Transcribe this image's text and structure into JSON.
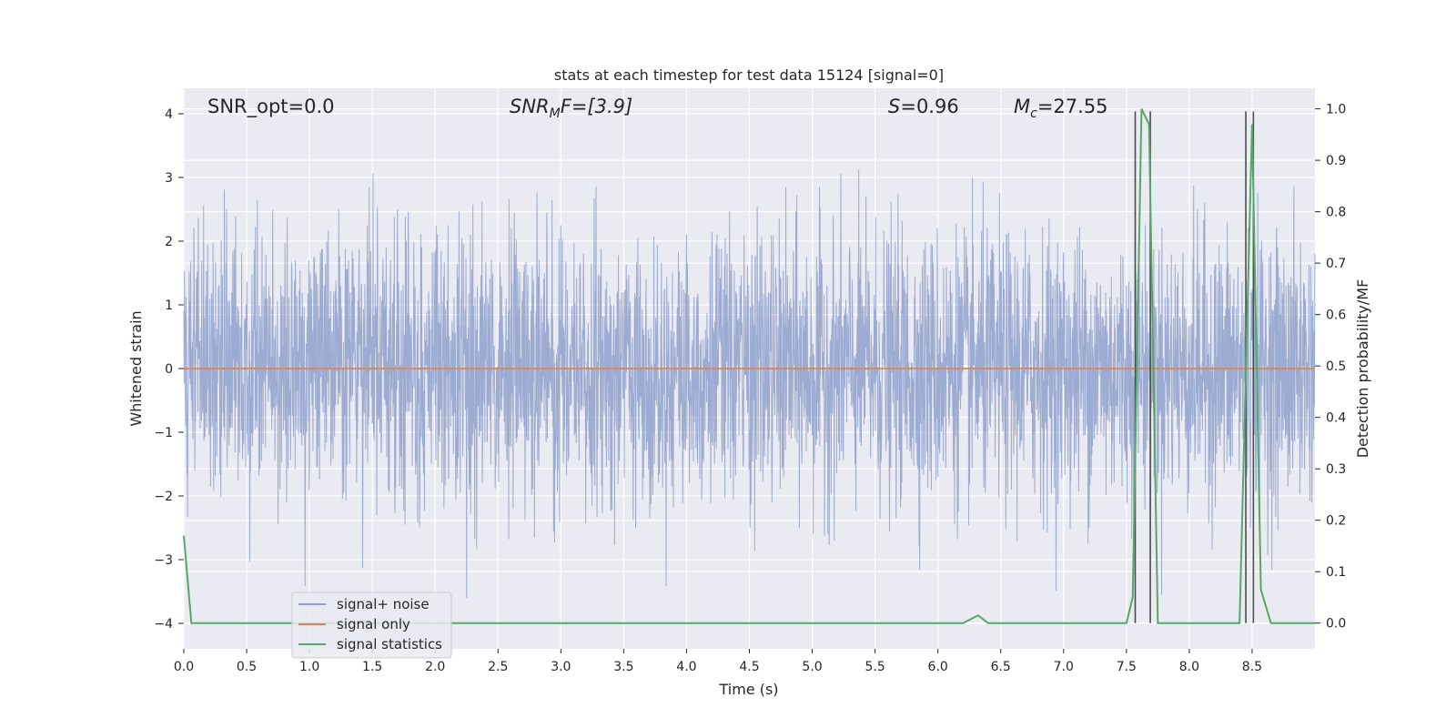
{
  "chart_data": {
    "type": "line",
    "title": "stats at each timestep for test data 15124 [signal=0]",
    "xlabel": "Time (s)",
    "ylabel_left": "Whitened strain",
    "ylabel_right": "Detection probability/MF",
    "xlim": [
      0.0,
      9.0
    ],
    "ylim_left": [
      -4.4,
      4.4
    ],
    "ylim_right": [
      -0.05,
      1.04
    ],
    "grid": true,
    "x_ticks": [
      "0.0",
      "0.5",
      "1.0",
      "1.5",
      "2.0",
      "2.5",
      "3.0",
      "3.5",
      "4.0",
      "4.5",
      "5.0",
      "5.5",
      "6.0",
      "6.5",
      "7.0",
      "7.5",
      "8.0",
      "8.5"
    ],
    "x_tick_values": [
      0.0,
      0.5,
      1.0,
      1.5,
      2.0,
      2.5,
      3.0,
      3.5,
      4.0,
      4.5,
      5.0,
      5.5,
      6.0,
      6.5,
      7.0,
      7.5,
      8.0,
      8.5
    ],
    "y_left_ticks": [
      "−4",
      "−3",
      "−2",
      "−1",
      "0",
      "1",
      "2",
      "3",
      "4"
    ],
    "y_left_tick_values": [
      -4,
      -3,
      -2,
      -1,
      0,
      1,
      2,
      3,
      4
    ],
    "y_right_ticks": [
      "0.0",
      "0.1",
      "0.2",
      "0.3",
      "0.4",
      "0.5",
      "0.6",
      "0.7",
      "0.8",
      "0.9",
      "1.0"
    ],
    "y_right_tick_values": [
      0.0,
      0.1,
      0.2,
      0.3,
      0.4,
      0.5,
      0.6,
      0.7,
      0.8,
      0.9,
      1.0
    ],
    "annotations": {
      "snr_opt": "SNR_opt=0.0",
      "snr_mf_main": "SNR",
      "snr_mf_sub": "M",
      "snr_mf_rest": "F=[3.9]",
      "s_main": "S",
      "s_rest": "=0.96",
      "mc_main": "M",
      "mc_sub": "c",
      "mc_rest": "=27.55"
    },
    "series": [
      {
        "name": "signal+ noise",
        "color": "#8da0cb",
        "axis": "left",
        "description_range": [
          -3.6,
          3.7
        ]
      },
      {
        "name": "signal only",
        "color": "#dd8452",
        "axis": "left",
        "x": [
          0.0,
          9.0
        ],
        "y": [
          0.0,
          0.0
        ]
      },
      {
        "name": "signal statistics",
        "color": "#55a868",
        "axis": "right",
        "x": [
          0.0,
          0.06,
          0.12,
          0.5,
          1.0,
          2.0,
          3.0,
          4.0,
          5.0,
          6.0,
          6.2,
          6.32,
          6.4,
          7.0,
          7.5,
          7.55,
          7.62,
          7.68,
          7.75,
          8.0,
          8.4,
          8.5,
          8.57,
          8.65,
          9.0
        ],
        "y": [
          0.17,
          0.0,
          0.0,
          0.0,
          0.0,
          0.0,
          0.0,
          0.0,
          0.0,
          0.0,
          0.0,
          0.015,
          0.0,
          0.0,
          0.0,
          0.05,
          1.0,
          0.97,
          0.0,
          0.0,
          0.0,
          0.97,
          0.065,
          0.0,
          0.0
        ]
      }
    ],
    "vertical_lines": {
      "color": "#4c4c4c",
      "x": [
        7.57,
        7.69,
        8.45,
        8.51
      ],
      "y_range_right": [
        0.0,
        0.995
      ]
    },
    "legend_position": "lower-left"
  }
}
